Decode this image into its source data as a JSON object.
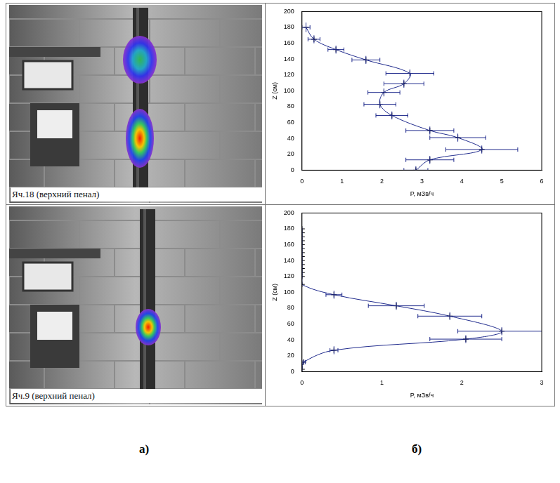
{
  "photo_captions": [
    "Яч.18 (верхний пенал)",
    "Яч.9 (верхний пенал)"
  ],
  "panel_letters": [
    "а)",
    "б)"
  ],
  "chart_data": [
    {
      "type": "line",
      "x_label": "P, мЗв/ч",
      "y_label": "Z (см)",
      "x": [
        0.1,
        0.3,
        0.85,
        1.6,
        2.7,
        2.55,
        2.05,
        1.95,
        2.25,
        3.2,
        3.9,
        4.5,
        3.2,
        2.85
      ],
      "values": [
        180,
        165,
        152,
        139,
        122,
        109,
        98,
        83,
        69,
        50,
        41,
        26,
        13,
        0
      ],
      "x_errors": [
        0.1,
        0.15,
        0.2,
        0.35,
        0.6,
        0.5,
        0.4,
        0.4,
        0.4,
        0.6,
        0.7,
        0.9,
        0.6,
        0.3
      ],
      "y_errors": [
        6,
        5,
        5,
        5,
        5,
        5,
        5,
        5,
        5,
        5,
        5,
        5,
        5,
        5
      ],
      "color": "#1f2a8c",
      "marker": "cross",
      "xlim": [
        0,
        6
      ],
      "xticks": [
        0,
        1,
        2,
        3,
        4,
        5,
        6
      ],
      "ylim": [
        0,
        200
      ],
      "yticks": [
        0,
        20,
        40,
        60,
        80,
        100,
        120,
        140,
        160,
        180,
        200
      ],
      "grid": false
    },
    {
      "type": "line",
      "x_label": "P, мЗв/ч",
      "y_label": "Z (см)",
      "x": [
        0,
        0,
        0,
        0,
        0,
        0,
        0,
        0,
        0,
        0,
        0,
        0,
        0,
        0,
        0.4,
        1.18,
        1.85,
        2.5,
        2.05,
        0.4,
        0.02,
        0
      ],
      "values": [
        180,
        175,
        170,
        165,
        160,
        155,
        150,
        145,
        140,
        135,
        130,
        125,
        120,
        110,
        97,
        83,
        70,
        51,
        41,
        27,
        12,
        3
      ],
      "x_errors": [
        0,
        0,
        0,
        0,
        0,
        0,
        0,
        0,
        0,
        0,
        0,
        0,
        0,
        0,
        0.1,
        0.35,
        0.4,
        0.55,
        0.45,
        0.05,
        0.02,
        0
      ],
      "y_errors": [
        2,
        2,
        2,
        2,
        2,
        2,
        2,
        2,
        2,
        2,
        2,
        2,
        2,
        2,
        5,
        5,
        5,
        5,
        5,
        5,
        3,
        3
      ],
      "color": "#1f2a8c",
      "marker": "cross",
      "xlim": [
        0,
        3
      ],
      "xticks": [
        0,
        1,
        2,
        3
      ],
      "ylim": [
        0,
        200
      ],
      "yticks": [
        0,
        20,
        40,
        60,
        80,
        100,
        120,
        140,
        160,
        180,
        200
      ],
      "grid": false
    }
  ]
}
